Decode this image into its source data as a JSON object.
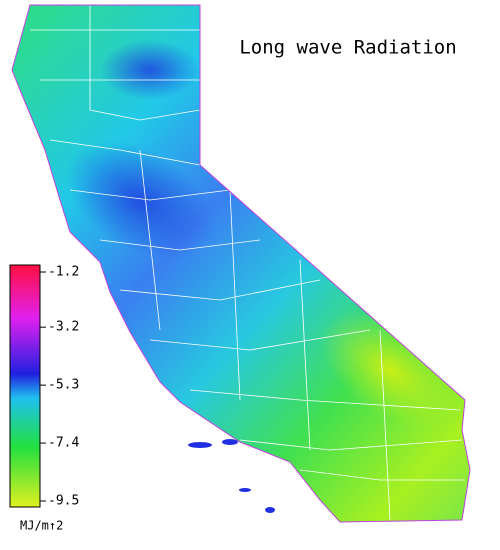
{
  "title": "Long wave Radiation",
  "colorbar": {
    "ticks": [
      -1.2,
      -3.2,
      -5.3,
      -7.4,
      -9.5
    ],
    "unit": "MJ/m↑2"
  }
}
